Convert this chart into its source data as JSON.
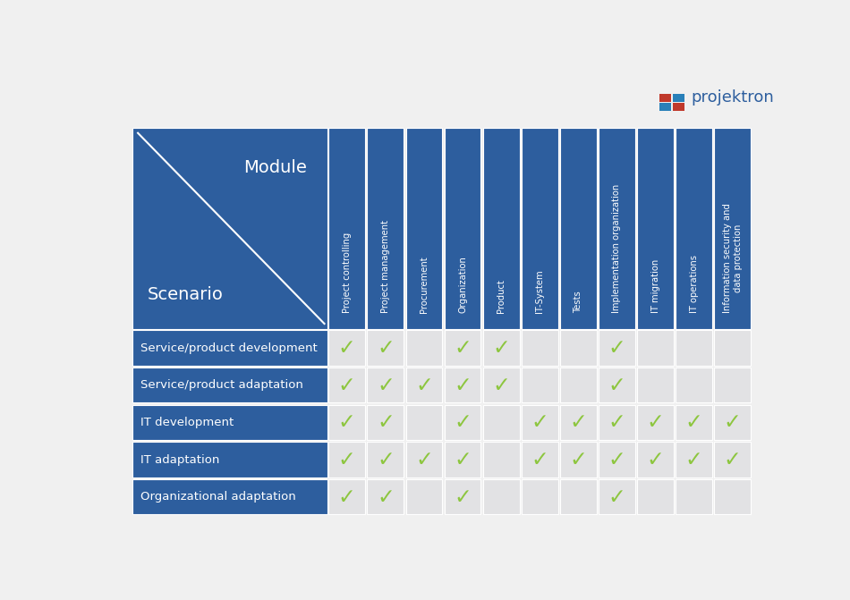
{
  "bg_color": "#f0f0f0",
  "header_bg_color": "#2d5e9e",
  "row_label_color": "#2d5e9e",
  "cell_bg_even": "#e8e8e8",
  "cell_bg_odd": "#d8d8d8",
  "cell_bg": "#e4e4e6",
  "check_color": "#8dc63f",
  "white": "#ffffff",
  "dark_text": "#333333",
  "logo_text_color": "#2d5e9e",
  "logo_colors": [
    [
      "#c0392b",
      "#2980b9"
    ],
    [
      "#2980b9",
      "#c0392b"
    ]
  ],
  "modules": [
    "Project controlling",
    "Project management",
    "Procurement",
    "Organization",
    "Product",
    "IT-System",
    "Tests",
    "Implementation organization",
    "IT migration",
    "IT operations",
    "Information security and\ndata protection"
  ],
  "scenarios": [
    "Service/product development",
    "Service/product adaptation",
    "IT development",
    "IT adaptation",
    "Organizational adaptation"
  ],
  "checks": [
    [
      1,
      1,
      0,
      1,
      1,
      0,
      0,
      1,
      0,
      0,
      0
    ],
    [
      1,
      1,
      1,
      1,
      1,
      0,
      0,
      1,
      0,
      0,
      0
    ],
    [
      1,
      1,
      0,
      1,
      0,
      1,
      1,
      1,
      1,
      1,
      1
    ],
    [
      1,
      1,
      1,
      1,
      0,
      1,
      1,
      1,
      1,
      1,
      1
    ],
    [
      1,
      1,
      0,
      1,
      0,
      0,
      0,
      1,
      0,
      0,
      0
    ]
  ],
  "fig_width": 9.5,
  "fig_height": 6.71,
  "dpi": 100
}
